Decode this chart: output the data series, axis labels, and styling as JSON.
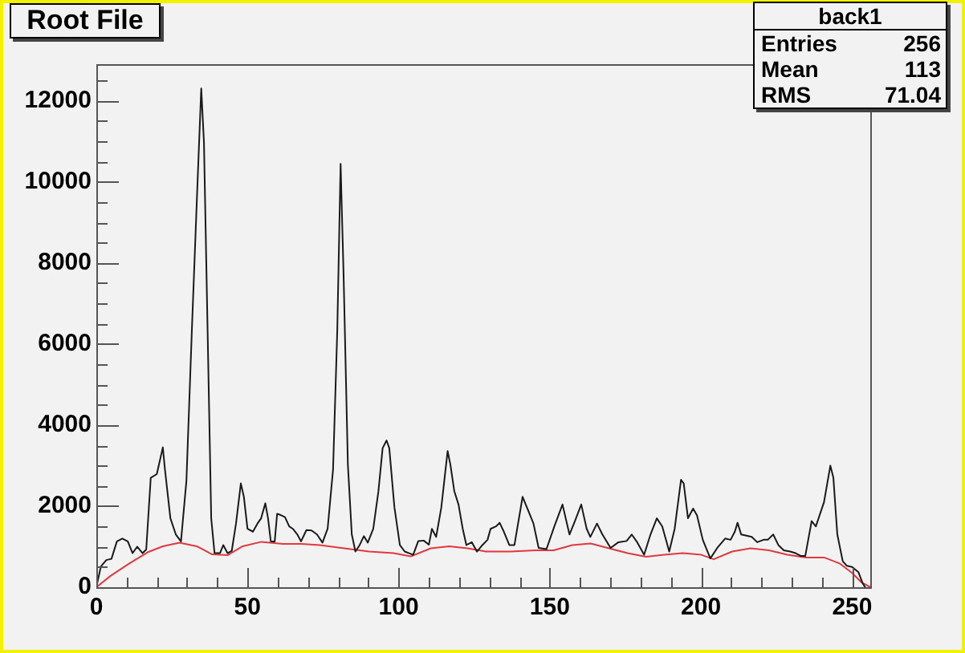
{
  "chart_data": {
    "type": "line",
    "title": "Root File",
    "annotations": [
      "back1",
      "Entries",
      "256",
      "Mean",
      "113",
      "RMS",
      "71.04"
    ],
    "xlim": [
      0,
      256
    ],
    "ylim": [
      0,
      12900
    ],
    "xticks": [
      0,
      {
        "value": 10,
        "label": null
      },
      {
        "value": 20,
        "label": null
      },
      {
        "value": 30,
        "label": null
      },
      {
        "value": 40,
        "label": null
      },
      50,
      {
        "value": 60,
        "label": null
      },
      {
        "value": 70,
        "label": null
      },
      {
        "value": 80,
        "label": null
      },
      {
        "value": 90,
        "label": null
      },
      100,
      {
        "value": 110,
        "label": null
      },
      {
        "value": 120,
        "label": null
      },
      {
        "value": 130,
        "label": null
      },
      {
        "value": 140,
        "label": null
      },
      150,
      {
        "value": 160,
        "label": null
      },
      {
        "value": 170,
        "label": null
      },
      {
        "value": 180,
        "label": null
      },
      {
        "value": 190,
        "label": null
      },
      200,
      {
        "value": 210,
        "label": null
      },
      {
        "value": 220,
        "label": null
      },
      {
        "value": 230,
        "label": null
      },
      {
        "value": 240,
        "label": null
      },
      250
    ],
    "yticks": [
      0,
      {
        "value": 500,
        "label": null
      },
      {
        "value": 1000,
        "label": null
      },
      {
        "value": 1500,
        "label": null
      },
      2000,
      {
        "value": 2500,
        "label": null
      },
      {
        "value": 3000,
        "label": null
      },
      {
        "value": 3500,
        "label": null
      },
      4000,
      {
        "value": 4500,
        "label": null
      },
      {
        "value": 5000,
        "label": null
      },
      {
        "value": 5500,
        "label": null
      },
      6000,
      {
        "value": 6500,
        "label": null
      },
      {
        "value": 7000,
        "label": null
      },
      {
        "value": 7500,
        "label": null
      },
      8000,
      {
        "value": 8500,
        "label": null
      },
      {
        "value": 9000,
        "label": null
      },
      {
        "value": 9500,
        "label": null
      },
      10000,
      {
        "value": 10500,
        "label": null
      },
      {
        "value": 11000,
        "label": null
      },
      {
        "value": 11500,
        "label": null
      },
      12000,
      {
        "value": 12500,
        "label": null
      }
    ],
    "series": [
      {
        "color": "#1a1a1a",
        "x": [
          0,
          1.5,
          3.3,
          5,
          6.8,
          8.6,
          10.4,
          12,
          13.5,
          15.3,
          16.5,
          18,
          20,
          22,
          22.7,
          24.5,
          26.3,
          28,
          29.8,
          31.6,
          33.3,
          34.7,
          35.6,
          36.8,
          38,
          39.1,
          40.9,
          42,
          43.4,
          44.8,
          46.2,
          47.8,
          48.8,
          50,
          51.8,
          53.3,
          54.5,
          55.9,
          56.8,
          57.7,
          59,
          59.8,
          61,
          62.4,
          63.8,
          65,
          66.5,
          67.7,
          69.5,
          71.2,
          73,
          74.8,
          76.5,
          78.3,
          79.7,
          80.8,
          81.8,
          83.2,
          84.5,
          85.7,
          87.1,
          88.5,
          89.8,
          91.6,
          93.3,
          94.7,
          96,
          96.9,
          98.6,
          100.4,
          102,
          104.8,
          106.5,
          108.3,
          110,
          111,
          112.4,
          114.1,
          116.2,
          117.1,
          118.4,
          119.8,
          121.2,
          122.4,
          124.2,
          125.9,
          127.7,
          129.4,
          130.4,
          132.2,
          133.4,
          134.8,
          136.6,
          138.3,
          141,
          142.8,
          144.6,
          146.3,
          148.9,
          151.5,
          154.2,
          156.5,
          158.3,
          160.4,
          162.2,
          163.4,
          165.6,
          167.4,
          170.1,
          172.7,
          175.4,
          177.1,
          178.9,
          181.2,
          183.3,
          185.4,
          187.2,
          189.5,
          191.3,
          193.4,
          194.3,
          195.7,
          197.4,
          198.7,
          200.6,
          203.1,
          205.4,
          208,
          209.8,
          211.2,
          212.1,
          213.3,
          215.1,
          216.8,
          218.6,
          220.7,
          222.1,
          223.9,
          225.6,
          227.4,
          229.5,
          231.3,
          233.1,
          234.5,
          236.6,
          238,
          240.7,
          242.8,
          243.8,
          245.1,
          246.9,
          248.2,
          250,
          252.1,
          253.4,
          254.3
        ],
        "values": [
          0,
          510,
          670,
          700,
          1130,
          1200,
          1130,
          840,
          1000,
          840,
          930,
          2700,
          2790,
          3450,
          2900,
          1700,
          1300,
          1130,
          2630,
          6340,
          9650,
          12300,
          10970,
          6340,
          1700,
          840,
          840,
          1040,
          840,
          900,
          1570,
          2560,
          2230,
          1440,
          1370,
          1570,
          1700,
          2070,
          1700,
          1130,
          1130,
          1810,
          1780,
          1730,
          1500,
          1440,
          1300,
          1130,
          1410,
          1400,
          1300,
          1100,
          1440,
          2900,
          6340,
          10440,
          7660,
          3030,
          1300,
          880,
          1040,
          1260,
          1100,
          1440,
          2360,
          3430,
          3620,
          3430,
          1970,
          1040,
          880,
          800,
          1140,
          1150,
          1050,
          1440,
          1240,
          1960,
          3360,
          3030,
          2370,
          2040,
          1440,
          1040,
          1110,
          880,
          1040,
          1170,
          1440,
          1500,
          1590,
          1370,
          1040,
          1040,
          2230,
          1900,
          1570,
          970,
          940,
          1500,
          2040,
          1300,
          1630,
          2040,
          1440,
          1240,
          1570,
          1300,
          970,
          1110,
          1140,
          1300,
          1110,
          800,
          1300,
          1700,
          1500,
          880,
          1440,
          2650,
          2560,
          1700,
          1940,
          1770,
          1170,
          710,
          970,
          1200,
          1170,
          1370,
          1590,
          1300,
          1270,
          1240,
          1110,
          1170,
          1170,
          1300,
          1040,
          910,
          880,
          840,
          770,
          770,
          1630,
          1500,
          2100,
          3000,
          2700,
          1300,
          640,
          530,
          500,
          370,
          110,
          0
        ]
      },
      {
        "color": "#e0393f",
        "x": [
          0,
          4.7,
          10.8,
          16.9,
          22,
          27.5,
          33.2,
          38.3,
          43.4,
          48.4,
          54.6,
          61.7,
          67.8,
          73.9,
          82,
          90.2,
          98.3,
          104,
          110.6,
          116.7,
          122.8,
          128.9,
          137.1,
          145.2,
          151.3,
          157.4,
          163.5,
          169.6,
          175.7,
          181.8,
          187.9,
          194,
          200.1,
          204.2,
          210.3,
          216.4,
          222.5,
          228.6,
          234.7,
          240.9,
          246,
          250,
          253.1,
          256
        ],
        "values": [
          0,
          280,
          580,
          860,
          1010,
          1100,
          1010,
          810,
          790,
          1010,
          1120,
          1070,
          1070,
          1040,
          960,
          880,
          840,
          760,
          960,
          1010,
          960,
          880,
          880,
          910,
          910,
          1040,
          1080,
          960,
          840,
          750,
          800,
          840,
          800,
          690,
          880,
          960,
          910,
          800,
          730,
          730,
          580,
          350,
          120,
          0
        ]
      }
    ]
  }
}
